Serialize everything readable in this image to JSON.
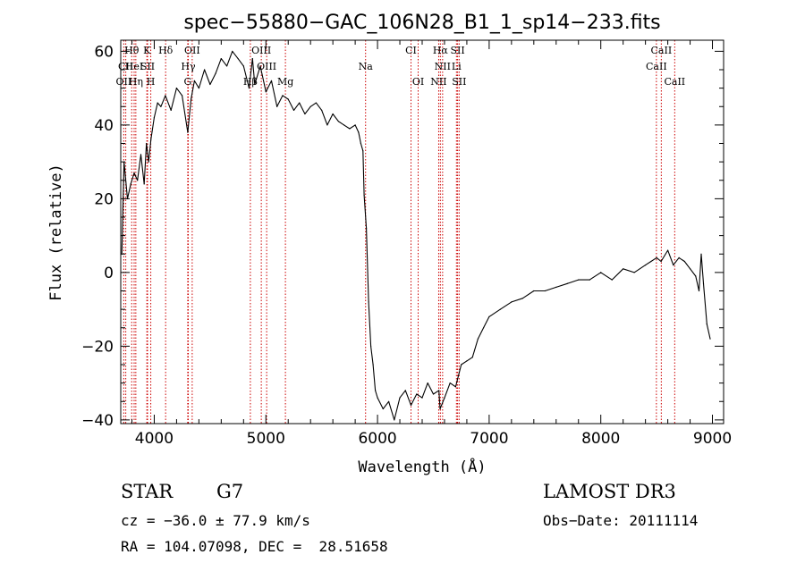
{
  "chart_data": {
    "type": "line",
    "title": "spec−55880−GAC_106N28_B1_1_sp14−233.fits",
    "xlabel": "Wavelength (Å)",
    "ylabel": "Flux (relative)",
    "xlim": [
      3700,
      9100
    ],
    "ylim": [
      -41,
      63
    ],
    "x_ticks": [
      4000,
      5000,
      6000,
      7000,
      8000,
      9000
    ],
    "y_ticks": [
      -40,
      -20,
      0,
      20,
      40,
      60
    ],
    "y_tick_labels": [
      "−40",
      "−20",
      "0",
      "20",
      "40",
      "60"
    ],
    "series": [
      {
        "name": "spectrum",
        "x": [
          3710,
          3730,
          3760,
          3790,
          3820,
          3850,
          3880,
          3910,
          3930,
          3950,
          3970,
          4000,
          4030,
          4060,
          4100,
          4150,
          4200,
          4250,
          4300,
          4330,
          4360,
          4400,
          4450,
          4500,
          4550,
          4600,
          4650,
          4700,
          4750,
          4800,
          4850,
          4880,
          4900,
          4950,
          5000,
          5050,
          5100,
          5150,
          5200,
          5250,
          5300,
          5350,
          5400,
          5450,
          5500,
          5550,
          5600,
          5650,
          5700,
          5750,
          5800,
          5830,
          5850,
          5870,
          5880,
          5900,
          5920,
          5940,
          5960,
          5980,
          6000,
          6050,
          6100,
          6150,
          6200,
          6250,
          6300,
          6350,
          6400,
          6450,
          6500,
          6550,
          6560,
          6600,
          6650,
          6700,
          6750,
          6800,
          6850,
          6900,
          6950,
          7000,
          7100,
          7200,
          7300,
          7400,
          7500,
          7600,
          7700,
          7800,
          7900,
          8000,
          8100,
          8200,
          8300,
          8400,
          8450,
          8500,
          8540,
          8600,
          8650,
          8700,
          8750,
          8800,
          8850,
          8880,
          8900,
          8920,
          8950,
          8980
        ],
        "y": [
          5,
          30,
          20,
          24,
          27,
          25,
          32,
          24,
          35,
          30,
          36,
          42,
          46,
          45,
          48,
          44,
          50,
          48,
          38,
          47,
          52,
          50,
          55,
          51,
          54,
          58,
          56,
          60,
          58,
          56,
          50,
          58,
          51,
          56,
          49,
          52,
          45,
          48,
          47,
          44,
          46,
          43,
          45,
          46,
          44,
          40,
          43,
          41,
          40,
          39,
          40,
          38,
          35,
          33,
          21,
          12,
          -8,
          -20,
          -25,
          -32,
          -34,
          -37,
          -35,
          -40,
          -34,
          -32,
          -36,
          -33,
          -34,
          -30,
          -33,
          -32,
          -37,
          -34,
          -30,
          -31,
          -25,
          -24,
          -23,
          -18,
          -15,
          -12,
          -10,
          -8,
          -7,
          -5,
          -5,
          -4,
          -3,
          -2,
          -2,
          0,
          -2,
          1,
          0,
          2,
          3,
          4,
          3,
          6,
          2,
          4,
          3,
          1,
          -1,
          -5,
          5,
          -3,
          -14,
          -18
        ]
      }
    ],
    "spectral_lines": [
      {
        "label": "Hθ",
        "x": 3798,
        "row": 1
      },
      {
        "label": "K",
        "x": 3934,
        "row": 1
      },
      {
        "label": "Hδ",
        "x": 4102,
        "row": 1
      },
      {
        "label": "OII",
        "x": 4340,
        "row": 1
      },
      {
        "label": "OIII",
        "x": 4959,
        "row": 1
      },
      {
        "label": "CI",
        "x": 6300,
        "row": 1
      },
      {
        "label": "Hα",
        "x": 6563,
        "row": 1
      },
      {
        "label": "SII",
        "x": 6717,
        "row": 1
      },
      {
        "label": "CaII",
        "x": 8542,
        "row": 1
      },
      {
        "label": "CaII",
        "x": 8498,
        "row": 2
      },
      {
        "label": "CII",
        "x": 3745,
        "row": 2
      },
      {
        "label": "HeI",
        "x": 3820,
        "row": 2
      },
      {
        "label": "SII",
        "x": 3940,
        "row": 2
      },
      {
        "label": "Hγ",
        "x": 4305,
        "row": 2
      },
      {
        "label": "OIII",
        "x": 5007,
        "row": 2
      },
      {
        "label": "Na",
        "x": 5893,
        "row": 2
      },
      {
        "label": "NII",
        "x": 6583,
        "row": 2
      },
      {
        "label": "Li",
        "x": 6707,
        "row": 2
      },
      {
        "label": "OII",
        "x": 3727,
        "row": 3
      },
      {
        "label": "Hη",
        "x": 3835,
        "row": 3
      },
      {
        "label": "H",
        "x": 3969,
        "row": 3
      },
      {
        "label": "G",
        "x": 4300,
        "row": 3
      },
      {
        "label": "Hβ",
        "x": 4861,
        "row": 3
      },
      {
        "label": "Mg",
        "x": 5175,
        "row": 3
      },
      {
        "label": "OI",
        "x": 6364,
        "row": 3
      },
      {
        "label": "NII",
        "x": 6548,
        "row": 3
      },
      {
        "label": "SII",
        "x": 6731,
        "row": 3
      },
      {
        "label": "CaII",
        "x": 8662,
        "row": 3
      }
    ]
  },
  "info": {
    "class_label": "STAR",
    "subclass": "G7",
    "survey": "LAMOST DR3",
    "redshift": "cz = −36.0 ± 77.9 km/s",
    "obs_date": "Obs−Date: 20111114",
    "coords": "RA = 104.07098, DEC =  28.51658"
  }
}
